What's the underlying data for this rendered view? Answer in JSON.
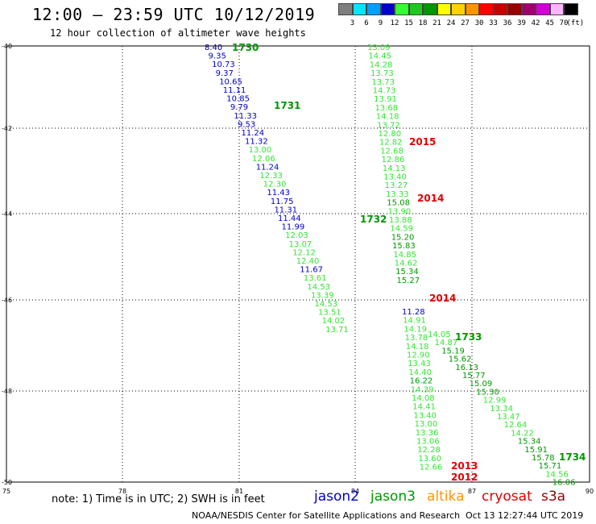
{
  "header": {
    "title": "12:00 — 23:59 UTC 10/12/2019",
    "subtitle": "12 hour collection of altimeter wave heights"
  },
  "color_scale": {
    "unit": "(ft)",
    "swatches": [
      {
        "label": "3",
        "color": "#7f7f7f"
      },
      {
        "label": "6",
        "color": "#00e6ff"
      },
      {
        "label": "9",
        "color": "#00a0ff"
      },
      {
        "label": "12",
        "color": "#0000cc"
      },
      {
        "label": "15",
        "color": "#33ff33"
      },
      {
        "label": "18",
        "color": "#1ec81e"
      },
      {
        "label": "21",
        "color": "#009600"
      },
      {
        "label": "24",
        "color": "#ffff00"
      },
      {
        "label": "27",
        "color": "#ffd200"
      },
      {
        "label": "30",
        "color": "#ff9600"
      },
      {
        "label": "33",
        "color": "#ff0000"
      },
      {
        "label": "36",
        "color": "#c80000"
      },
      {
        "label": "39",
        "color": "#960000"
      },
      {
        "label": "42",
        "color": "#a0006e"
      },
      {
        "label": "45",
        "color": "#d200d2"
      },
      {
        "label": "70",
        "color": "#ffb4ff"
      },
      {
        "label": "",
        "color": "#000000"
      }
    ]
  },
  "map": {
    "lon_ticks": [
      "75",
      "78",
      "81",
      "84",
      "87",
      "90"
    ],
    "lat_ticks": [
      "-40",
      "-42",
      "-44",
      "-46",
      "-48",
      "-50"
    ],
    "lon_range": [
      75,
      90
    ],
    "lat_range": [
      -40,
      -50
    ]
  },
  "pass_labels": [
    {
      "text": "1730",
      "color": "#009600"
    },
    {
      "text": "1731",
      "color": "#009600"
    },
    {
      "text": "2015",
      "color": "#e00000"
    },
    {
      "text": "2014",
      "color": "#e00000"
    },
    {
      "text": "1732",
      "color": "#009600"
    },
    {
      "text": "2014",
      "color": "#e00000"
    },
    {
      "text": "1733",
      "color": "#009600"
    },
    {
      "text": "2013",
      "color": "#e00000"
    },
    {
      "text": "2012",
      "color": "#e00000"
    },
    {
      "text": "1734",
      "color": "#009600"
    }
  ],
  "tracks": {
    "track_a": [
      "8.40",
      "9.35",
      "10.73",
      "9.37",
      "10.65",
      "11.11",
      "10.85",
      "9.79",
      "11.33",
      "9.53",
      "11.24",
      "11.32",
      "13.00",
      "12.06",
      "11.24",
      "12.33",
      "12.30",
      "11.43",
      "11.75",
      "11.31",
      "11.44",
      "11.99",
      "12.03",
      "13.07",
      "12.12",
      "12.40",
      "11.67",
      "13.61",
      "14.53",
      "13.39",
      "14.53",
      "13.51",
      "14.02",
      "13.71"
    ],
    "track_b": [
      "13.09",
      "14.45",
      "14.28",
      "13.73",
      "13.73",
      "14.73",
      "13.91",
      "13.68",
      "14.18",
      "13.72",
      "12.80",
      "12.82",
      "12.68",
      "12.86",
      "14.13",
      "13.40",
      "13.27",
      "13.33",
      "15.08",
      "13.90",
      "13.88",
      "14.59",
      "15.20",
      "15.83",
      "14.85",
      "14.62",
      "15.34",
      "15.27"
    ],
    "track_c": [
      "11.28",
      "14.91",
      "14.19",
      "13.78",
      "14.18",
      "12.90",
      "13.43",
      "14.40",
      "16.22",
      "14.39",
      "14.08",
      "14.41",
      "13.40",
      "13.00",
      "13.36",
      "13.06",
      "12.28",
      "13.60",
      "12.66"
    ],
    "track_d": [
      "14.05",
      "14.87",
      "15.19",
      "15.62",
      "16.13",
      "15.77",
      "15.09",
      "15.30",
      "12.99",
      "13.34",
      "13.47",
      "12.64",
      "14.22",
      "15.34",
      "15.91",
      "15.78",
      "15.71",
      "14.56",
      "16.06"
    ]
  },
  "footer": {
    "note": "note: 1) Time is in UTC; 2) SWH is in feet",
    "legend": [
      {
        "name": "jason2",
        "color": "#0000cc"
      },
      {
        "name": "jason3",
        "color": "#009600"
      },
      {
        "name": "altika",
        "color": "#ff9600"
      },
      {
        "name": "cryosat",
        "color": "#e00000"
      },
      {
        "name": "s3a",
        "color": "#960000"
      }
    ],
    "credit": "NOAA/NESDIS Center for Satellite Applications and Research",
    "timestamp": "Oct 13 12:27:44 UTC 2019"
  }
}
